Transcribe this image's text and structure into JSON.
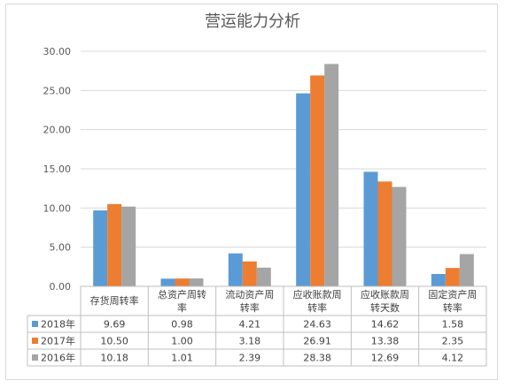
{
  "chart_data": {
    "type": "bar",
    "title": "营运能力分析",
    "categories": [
      [
        "存货周转率"
      ],
      [
        "总资产周转",
        "率"
      ],
      [
        "流动资产周",
        "转率"
      ],
      [
        "应收账款周",
        "转率"
      ],
      [
        "应收账款周",
        "转天数"
      ],
      [
        "固定资产周",
        "转率"
      ]
    ],
    "series": [
      {
        "name": "2018年",
        "color": "#5b9bd5",
        "values": [
          9.69,
          0.98,
          4.21,
          24.63,
          14.62,
          1.58
        ],
        "labels": [
          "9.69",
          "0.98",
          "4.21",
          "24.63",
          "14.62",
          "1.58"
        ]
      },
      {
        "name": "2017年",
        "color": "#ed7d31",
        "values": [
          10.5,
          1.0,
          3.18,
          26.91,
          13.38,
          2.35
        ],
        "labels": [
          "10.50",
          "1.00",
          "3.18",
          "26.91",
          "13.38",
          "2.35"
        ]
      },
      {
        "name": "2016年",
        "color": "#a5a5a5",
        "values": [
          10.18,
          1.01,
          2.39,
          28.38,
          12.69,
          4.12
        ],
        "labels": [
          "10.18",
          "1.01",
          "2.39",
          "28.38",
          "12.69",
          "4.12"
        ]
      }
    ],
    "ylim": [
      0,
      30
    ],
    "yticks": [
      "0.00",
      "5.00",
      "10.00",
      "15.00",
      "20.00",
      "25.00",
      "30.00"
    ],
    "grid": true,
    "legend": "data-table"
  }
}
